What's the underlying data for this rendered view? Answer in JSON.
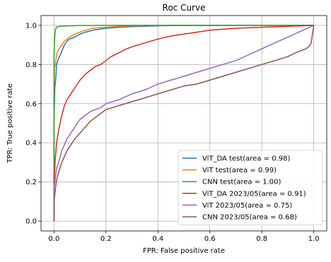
{
  "chart_data": {
    "type": "line",
    "title": "Roc Curve",
    "xlabel": "FPR: False positive rate",
    "ylabel": "TPR: True positive rate",
    "xlim": [
      -0.05,
      1.05
    ],
    "ylim": [
      -0.05,
      1.05
    ],
    "xticks": [
      0.0,
      0.2,
      0.4,
      0.6,
      0.8,
      1.0
    ],
    "yticks": [
      0.0,
      0.2,
      0.4,
      0.6,
      0.8,
      1.0
    ],
    "xtick_labels": [
      "0.0",
      "0.2",
      "0.4",
      "0.6",
      "0.8",
      "1.0"
    ],
    "ytick_labels": [
      "0.0",
      "0.2",
      "0.4",
      "0.6",
      "0.8",
      "1.0"
    ],
    "grid": true,
    "legend_position": "lower-right",
    "series": [
      {
        "name": "ViT_DA test(area = 0.98)",
        "color": "#1f77b4",
        "x": [
          0,
          0,
          0.003,
          0.005,
          0.008,
          0.01,
          0.015,
          0.02,
          0.025,
          0.03,
          0.04,
          0.05,
          0.06,
          0.08,
          0.1,
          0.12,
          0.15,
          0.2,
          0.25,
          0.3,
          0.35,
          0.42,
          0.5,
          0.7,
          1.0
        ],
        "y": [
          0,
          0.5,
          0.68,
          0.7,
          0.75,
          0.8,
          0.82,
          0.84,
          0.85,
          0.87,
          0.9,
          0.92,
          0.93,
          0.94,
          0.955,
          0.965,
          0.975,
          0.985,
          0.99,
          0.993,
          0.995,
          0.998,
          0.999,
          1.0,
          1.0
        ]
      },
      {
        "name": "ViT test(area = 0.99)",
        "color": "#ff7f0e",
        "x": [
          0,
          0,
          0.002,
          0.005,
          0.008,
          0.012,
          0.02,
          0.03,
          0.04,
          0.05,
          0.06,
          0.08,
          0.1,
          0.12,
          0.15,
          0.2,
          0.25,
          0.3,
          0.4,
          0.5,
          1.0
        ],
        "y": [
          0,
          0.6,
          0.78,
          0.8,
          0.83,
          0.86,
          0.88,
          0.9,
          0.92,
          0.93,
          0.94,
          0.955,
          0.965,
          0.975,
          0.985,
          0.99,
          0.995,
          0.997,
          0.999,
          1.0,
          1.0
        ]
      },
      {
        "name": "CNN test(area = 1.00)",
        "color": "#2ca02c",
        "x": [
          0,
          0,
          0.002,
          0.004,
          0.006,
          0.01,
          0.015,
          0.02,
          0.03,
          0.05,
          0.08,
          0.1,
          0.15,
          0.2,
          0.3,
          0.5,
          1.0
        ],
        "y": [
          0,
          0.85,
          0.92,
          0.96,
          0.98,
          0.99,
          0.993,
          0.995,
          0.996,
          0.997,
          0.998,
          0.999,
          0.999,
          1.0,
          1.0,
          1.0,
          1.0
        ]
      },
      {
        "name": "ViT_DA 2023/05(area = 0.91)",
        "color": "#d62728",
        "x": [
          0,
          0,
          0.005,
          0.01,
          0.015,
          0.02,
          0.03,
          0.04,
          0.05,
          0.06,
          0.07,
          0.08,
          0.1,
          0.12,
          0.14,
          0.16,
          0.18,
          0.2,
          0.22,
          0.25,
          0.28,
          0.3,
          0.35,
          0.4,
          0.45,
          0.5,
          0.55,
          0.6,
          0.7,
          0.8,
          0.9,
          1.0
        ],
        "y": [
          0,
          0.2,
          0.32,
          0.4,
          0.44,
          0.48,
          0.54,
          0.59,
          0.62,
          0.64,
          0.66,
          0.68,
          0.72,
          0.75,
          0.77,
          0.79,
          0.8,
          0.82,
          0.84,
          0.86,
          0.88,
          0.89,
          0.91,
          0.93,
          0.945,
          0.955,
          0.965,
          0.975,
          0.985,
          0.99,
          0.995,
          1.0
        ]
      },
      {
        "name": "ViT 2023/05(area = 0.75)",
        "color": "#9467bd",
        "x": [
          0,
          0,
          0.005,
          0.01,
          0.02,
          0.03,
          0.04,
          0.05,
          0.06,
          0.08,
          0.1,
          0.12,
          0.14,
          0.16,
          0.18,
          0.2,
          0.25,
          0.3,
          0.35,
          0.4,
          0.45,
          0.5,
          0.55,
          0.6,
          0.65,
          0.7,
          0.75,
          0.8,
          0.85,
          0.9,
          0.95,
          1.0
        ],
        "y": [
          0,
          0.17,
          0.22,
          0.27,
          0.31,
          0.36,
          0.39,
          0.42,
          0.44,
          0.48,
          0.52,
          0.54,
          0.56,
          0.57,
          0.58,
          0.6,
          0.62,
          0.65,
          0.67,
          0.7,
          0.72,
          0.74,
          0.76,
          0.78,
          0.8,
          0.82,
          0.85,
          0.88,
          0.91,
          0.94,
          0.97,
          1.0
        ]
      },
      {
        "name": "CNN 2023/05(area = 0.68)",
        "color": "#8c564b",
        "x": [
          0,
          0,
          0.005,
          0.01,
          0.02,
          0.03,
          0.04,
          0.05,
          0.06,
          0.08,
          0.1,
          0.12,
          0.14,
          0.16,
          0.18,
          0.2,
          0.25,
          0.3,
          0.35,
          0.4,
          0.45,
          0.5,
          0.55,
          0.6,
          0.65,
          0.7,
          0.75,
          0.8,
          0.85,
          0.9,
          0.93,
          0.95,
          0.97,
          0.98,
          0.99,
          1.0
        ],
        "y": [
          0,
          0.1,
          0.16,
          0.21,
          0.26,
          0.3,
          0.33,
          0.36,
          0.38,
          0.42,
          0.45,
          0.48,
          0.51,
          0.53,
          0.55,
          0.57,
          0.59,
          0.61,
          0.63,
          0.65,
          0.67,
          0.69,
          0.7,
          0.72,
          0.74,
          0.76,
          0.78,
          0.8,
          0.82,
          0.84,
          0.86,
          0.87,
          0.88,
          0.89,
          0.91,
          1.0
        ]
      }
    ]
  }
}
